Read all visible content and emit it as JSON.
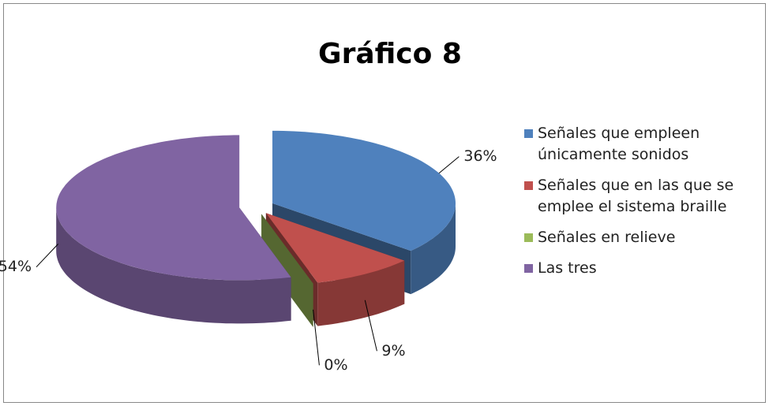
{
  "chart_data": {
    "type": "pie",
    "title": "Gráfico 8",
    "categories": [
      "Señales que empleen únicamente sonidos",
      "Señales que en las que se emplee el sistema braille",
      "Señales en relieve",
      "Las tres"
    ],
    "values": [
      36,
      9,
      0,
      54
    ],
    "value_labels": [
      "36%",
      "9%",
      "0%",
      "54%"
    ],
    "colors": [
      "#4f81bd",
      "#c0504d",
      "#9bbb59",
      "#8064a2"
    ],
    "legend": "right"
  }
}
